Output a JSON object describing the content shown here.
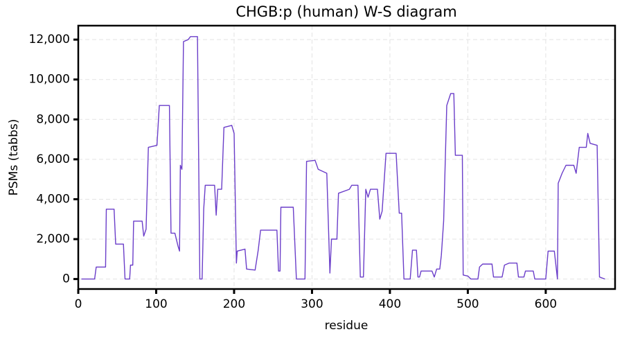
{
  "chart_data": {
    "type": "line",
    "title": "CHGB:p (human) W-S diagram",
    "x_label": "residue",
    "y_label": "PSMs (tabbs)",
    "color": "#6a3dc9",
    "grid": true,
    "xlim": [
      0,
      689
    ],
    "ylim": [
      -500,
      12700
    ],
    "xticks": [
      0,
      100,
      200,
      300,
      400,
      500,
      600
    ],
    "yticks": [
      0,
      {
        "value": 2000,
        "label": "2,000"
      },
      {
        "value": 4000,
        "label": "4,000"
      },
      {
        "value": 6000,
        "label": "6,000"
      },
      {
        "value": 8000,
        "label": "8,000"
      },
      {
        "value": 10000,
        "label": "10,000"
      },
      {
        "value": 12000,
        "label": "12,000"
      }
    ],
    "x": [
      4,
      21,
      23,
      35,
      36,
      46,
      48,
      58,
      60,
      66,
      67,
      70,
      71,
      82,
      84,
      87,
      90,
      101,
      104,
      117,
      119,
      124,
      128,
      130,
      131,
      133,
      135,
      141,
      144,
      153,
      156,
      159,
      161,
      163,
      175,
      177,
      179,
      184,
      187,
      197,
      200,
      203,
      204,
      214,
      216,
      227,
      231,
      234,
      255,
      257,
      259,
      260,
      276,
      280,
      291,
      293,
      304,
      308,
      319,
      323,
      325,
      332,
      334,
      348,
      351,
      359,
      362,
      366,
      369,
      372,
      375,
      384,
      387,
      390,
      395,
      408,
      412,
      415,
      418,
      426,
      429,
      434,
      436,
      438,
      440,
      454,
      457,
      460,
      464,
      466,
      469,
      473,
      478,
      482,
      484,
      493,
      494,
      500,
      504,
      513,
      515,
      519,
      531,
      533,
      544,
      547,
      553,
      563,
      565,
      572,
      574,
      584,
      586,
      600,
      603,
      611,
      615,
      616,
      621,
      626,
      636,
      639,
      643,
      652,
      654,
      657,
      666,
      669,
      676
    ],
    "values": [
      0,
      0,
      600,
      600,
      3500,
      3500,
      1750,
      1750,
      0,
      0,
      700,
      700,
      2900,
      2900,
      2150,
      2500,
      6600,
      6700,
      8700,
      8700,
      2300,
      2300,
      1650,
      1400,
      5700,
      5500,
      11900,
      12000,
      12150,
      12150,
      0,
      0,
      3500,
      4700,
      4700,
      3200,
      4500,
      4500,
      7600,
      7700,
      7300,
      800,
      1400,
      1500,
      500,
      450,
      1450,
      2450,
      2450,
      400,
      400,
      3600,
      3600,
      0,
      0,
      5900,
      5950,
      5500,
      5300,
      300,
      2000,
      2000,
      4300,
      4500,
      4700,
      4700,
      100,
      100,
      4500,
      4100,
      4500,
      4500,
      3000,
      3400,
      6300,
      6300,
      3300,
      3300,
      0,
      0,
      1450,
      1450,
      100,
      100,
      400,
      400,
      100,
      500,
      500,
      1200,
      2900,
      8700,
      9300,
      9300,
      6200,
      6200,
      200,
      150,
      0,
      0,
      600,
      750,
      750,
      100,
      100,
      700,
      800,
      800,
      100,
      100,
      400,
      400,
      0,
      0,
      1400,
      1400,
      0,
      4800,
      5300,
      5700,
      5700,
      5300,
      6600,
      6600,
      7300,
      6800,
      6700,
      100,
      0
    ]
  }
}
